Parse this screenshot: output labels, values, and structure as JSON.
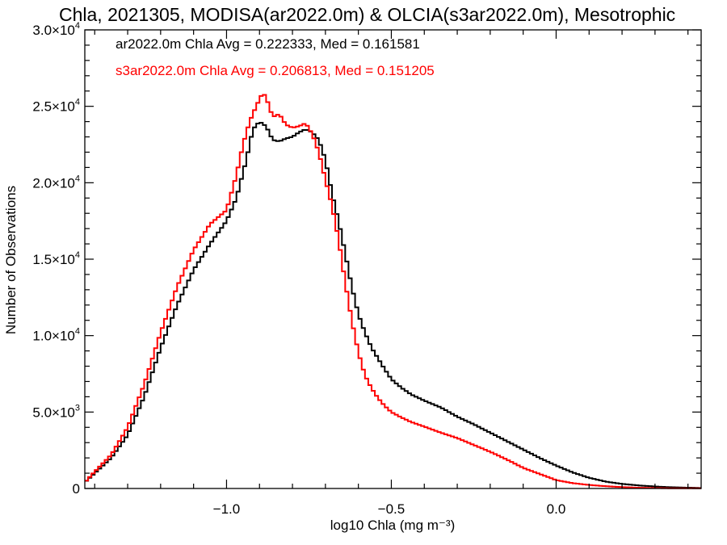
{
  "chart_data": {
    "type": "line",
    "title": "Chla, 2021305, MODISA(ar2022.0m) & OLCIA(s3ar2022.0m), Mesotrophic",
    "xlabel": "log10 Chla (mg m⁻³)",
    "ylabel": "Number of Observations",
    "xlim": [
      -1.43,
      0.44
    ],
    "ylim": [
      0,
      30000
    ],
    "grid": false,
    "x_ticks": [
      {
        "value": -1.0,
        "label": "−1.0"
      },
      {
        "value": -0.5,
        "label": "−0.5"
      },
      {
        "value": 0.0,
        "label": "0.0"
      }
    ],
    "y_ticks": [
      {
        "value": 0,
        "label": "0"
      },
      {
        "value": 5000,
        "mantissa": "5.0×10",
        "exp": "3"
      },
      {
        "value": 10000,
        "mantissa": "1.0×10",
        "exp": "4"
      },
      {
        "value": 15000,
        "mantissa": "1.5×10",
        "exp": "4"
      },
      {
        "value": 20000,
        "mantissa": "2.0×10",
        "exp": "4"
      },
      {
        "value": 25000,
        "mantissa": "2.5×10",
        "exp": "4"
      },
      {
        "value": 30000,
        "mantissa": "3.0×10",
        "exp": "4"
      }
    ],
    "annotations": [
      {
        "text": "ar2022.0m Chla Avg = 0.222333, Med = 0.161581",
        "color": "#000000"
      },
      {
        "text": "s3ar2022.0m Chla Avg = 0.206813, Med = 0.151205",
        "color": "#ff0000"
      }
    ],
    "series": [
      {
        "color": "#000000",
        "x": [
          -1.43,
          -1.4,
          -1.35,
          -1.3,
          -1.25,
          -1.2,
          -1.15,
          -1.1,
          -1.05,
          -1.0,
          -0.97,
          -0.94,
          -0.92,
          -0.9,
          -0.88,
          -0.86,
          -0.84,
          -0.82,
          -0.8,
          -0.78,
          -0.76,
          -0.74,
          -0.72,
          -0.7,
          -0.68,
          -0.66,
          -0.64,
          -0.62,
          -0.6,
          -0.58,
          -0.56,
          -0.54,
          -0.52,
          -0.5,
          -0.47,
          -0.44,
          -0.4,
          -0.35,
          -0.3,
          -0.25,
          -0.2,
          -0.15,
          -0.1,
          -0.05,
          0.0,
          0.05,
          0.1,
          0.15,
          0.2,
          0.25,
          0.3,
          0.35,
          0.44
        ],
        "y": [
          400,
          1000,
          2000,
          3500,
          6000,
          9200,
          12000,
          14300,
          16000,
          17500,
          19000,
          21500,
          23500,
          24000,
          23700,
          22800,
          22700,
          22900,
          23000,
          23300,
          23500,
          23300,
          22800,
          21500,
          19300,
          17500,
          15400,
          13200,
          11400,
          10200,
          9200,
          8500,
          7800,
          7150,
          6600,
          6150,
          5750,
          5300,
          4700,
          4200,
          3650,
          3100,
          2550,
          2000,
          1500,
          1050,
          700,
          450,
          300,
          200,
          130,
          80,
          30
        ]
      },
      {
        "color": "#ff0000",
        "x": [
          -1.43,
          -1.4,
          -1.35,
          -1.3,
          -1.25,
          -1.2,
          -1.15,
          -1.1,
          -1.05,
          -1.0,
          -0.97,
          -0.95,
          -0.93,
          -0.91,
          -0.89,
          -0.88,
          -0.86,
          -0.84,
          -0.82,
          -0.8,
          -0.78,
          -0.76,
          -0.74,
          -0.72,
          -0.7,
          -0.68,
          -0.66,
          -0.64,
          -0.62,
          -0.6,
          -0.58,
          -0.56,
          -0.54,
          -0.52,
          -0.5,
          -0.47,
          -0.44,
          -0.4,
          -0.35,
          -0.3,
          -0.25,
          -0.2,
          -0.15,
          -0.1,
          -0.05,
          0.0,
          0.05,
          0.1,
          0.15,
          0.2,
          0.25,
          0.3,
          0.35,
          0.44
        ],
        "y": [
          400,
          1100,
          2200,
          4000,
          6800,
          10200,
          13200,
          15600,
          17300,
          18200,
          20500,
          22500,
          24000,
          25000,
          25900,
          25600,
          24300,
          24500,
          23800,
          23600,
          23700,
          23900,
          23200,
          22000,
          20200,
          18500,
          16300,
          13500,
          11000,
          8900,
          7400,
          6550,
          5900,
          5400,
          5000,
          4650,
          4350,
          4050,
          3650,
          3300,
          2850,
          2400,
          1900,
          1350,
          950,
          550,
          350,
          230,
          150,
          90,
          50,
          30,
          15,
          10
        ]
      }
    ]
  }
}
